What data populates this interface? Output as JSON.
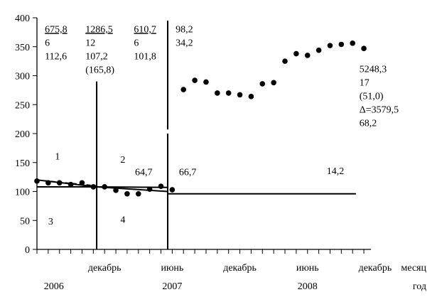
{
  "chart_data": {
    "type": "scatter",
    "title": "",
    "xlabel": "месяц",
    "x2label": "год",
    "ylabel": "",
    "ylim": [
      0,
      400
    ],
    "yticks": [
      "0",
      "50",
      "100",
      "150",
      "200",
      "250",
      "300",
      "350",
      "400"
    ],
    "xticks": [
      {
        "m": 6,
        "label": "декабрь"
      },
      {
        "m": 12,
        "label": "июнь"
      },
      {
        "m": 18,
        "label": "декабрь"
      },
      {
        "m": 24,
        "label": "июнь"
      },
      {
        "m": 30,
        "label": "декабрь"
      }
    ],
    "years": [
      {
        "m": 1.5,
        "label": "2006"
      },
      {
        "m": 12,
        "label": "2007"
      },
      {
        "m": 24,
        "label": "2008"
      }
    ],
    "series": [
      {
        "values": [
          [
            0,
            118
          ],
          [
            1,
            115
          ],
          [
            2,
            115
          ],
          [
            3,
            112
          ],
          [
            4,
            115
          ],
          [
            5,
            108
          ],
          [
            6,
            108
          ],
          [
            7,
            102
          ],
          [
            8,
            96
          ],
          [
            9,
            96
          ],
          [
            10,
            104
          ],
          [
            11,
            109
          ],
          [
            12,
            103
          ],
          [
            13,
            276
          ],
          [
            14,
            292
          ],
          [
            15,
            289
          ],
          [
            16,
            270
          ],
          [
            17,
            270
          ],
          [
            18,
            267
          ],
          [
            19,
            264
          ],
          [
            20,
            286
          ],
          [
            21,
            288
          ],
          [
            22,
            325
          ],
          [
            23,
            338
          ],
          [
            24,
            335
          ],
          [
            25,
            344
          ],
          [
            26,
            352
          ],
          [
            27,
            354
          ],
          [
            28,
            356
          ],
          [
            29,
            347
          ]
        ]
      }
    ],
    "segments": [
      {
        "x0": 0,
        "y0": 108,
        "x1": 5.3,
        "y1": 108,
        "style": "solid"
      },
      {
        "x0": 0,
        "y0": 120,
        "x1": 5.3,
        "y1": 108,
        "style": "solid"
      },
      {
        "x0": 0,
        "y0": 120,
        "x1": 5.3,
        "y1": 110,
        "style": "dashed"
      },
      {
        "x0": 5.3,
        "y0": 108,
        "x1": 11.6,
        "y1": 107,
        "style": "solid"
      },
      {
        "x0": 5.3,
        "y0": 108,
        "x1": 11.6,
        "y1": 100,
        "style": "solid"
      },
      {
        "x0": 11.6,
        "y0": 96,
        "x1": 28.3,
        "y1": 96,
        "style": "solid"
      }
    ],
    "dividers": [
      {
        "x": 5.3,
        "y_top": 290
      },
      {
        "x": 11.6,
        "y_top": 395,
        "gap": [
          200,
          207
        ]
      }
    ],
    "annotations": [
      {
        "m": 0.7,
        "y": 375,
        "lines": [
          "675,8",
          "6",
          "112,6"
        ],
        "underline_first": true
      },
      {
        "m": 4.3,
        "y": 375,
        "lines": [
          "1286,5",
          "12",
          "107,2",
          "(165,8)"
        ],
        "underline_first": true
      },
      {
        "m": 8.6,
        "y": 375,
        "lines": [
          "610,7",
          "6",
          "101,8"
        ],
        "underline_first": true
      },
      {
        "m": 12.3,
        "y": 375,
        "lines": [
          "98,2",
          "34,2"
        ],
        "underline_first": false
      },
      {
        "m": 28.6,
        "y": 306,
        "lines": [
          "5248,3",
          "17",
          "(51,0)",
          "Δ=3579,5",
          "68,2"
        ],
        "underline_first": false
      },
      {
        "m": 1.6,
        "y": 155,
        "lines": [
          "1"
        ],
        "underline_first": false
      },
      {
        "m": 7.4,
        "y": 150,
        "lines": [
          "2"
        ],
        "underline_first": false
      },
      {
        "m": 1.0,
        "y": 43,
        "lines": [
          "3"
        ],
        "underline_first": false
      },
      {
        "m": 7.4,
        "y": 46,
        "lines": [
          "4"
        ],
        "underline_first": false
      },
      {
        "m": 8.7,
        "y": 128,
        "lines": [
          "64,7"
        ],
        "underline_first": false
      },
      {
        "m": 12.6,
        "y": 128,
        "lines": [
          "66,7"
        ],
        "underline_first": false
      },
      {
        "m": 25.7,
        "y": 130,
        "lines": [
          "14,2"
        ],
        "underline_first": false
      }
    ],
    "grid": false,
    "legend": "none"
  }
}
